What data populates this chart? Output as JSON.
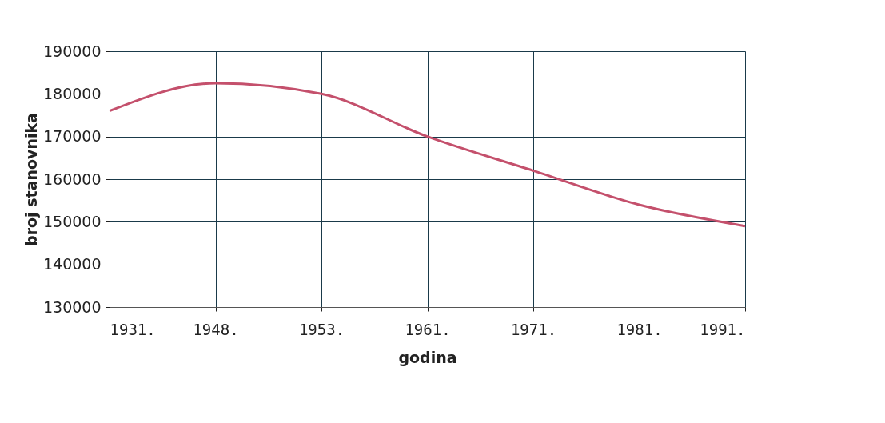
{
  "chart_data": {
    "type": "line",
    "xlabel": "godina",
    "ylabel": "broj stanovnika",
    "categories": [
      "1931.",
      "1948.",
      "1953.",
      "1961.",
      "1971.",
      "1981.",
      "1991."
    ],
    "series": [
      {
        "color": "#c4506c",
        "values": [
          176000,
          182500,
          180000,
          170000,
          162000,
          154000,
          149000
        ]
      }
    ],
    "ylim": [
      130000,
      190000
    ],
    "yticks": [
      130000,
      140000,
      150000,
      160000,
      170000,
      180000,
      190000
    ],
    "grid": true,
    "legend": false,
    "marker": "none",
    "line_style": "solid"
  }
}
